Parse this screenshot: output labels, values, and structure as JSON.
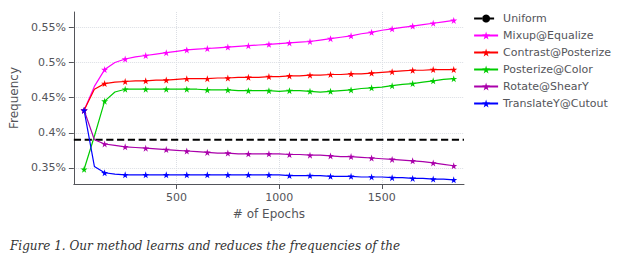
{
  "chart_data": {
    "type": "line",
    "xlabel": "# of Epochs",
    "ylabel": "Frequency",
    "annotations": [
      "Figure 1. Our method learns and reduces the frequencies of the"
    ],
    "x": [
      50,
      100,
      150,
      200,
      250,
      300,
      350,
      400,
      450,
      500,
      550,
      600,
      650,
      700,
      750,
      800,
      850,
      900,
      950,
      1000,
      1050,
      1100,
      1150,
      1200,
      1250,
      1300,
      1350,
      1400,
      1450,
      1500,
      1550,
      1600,
      1650,
      1700,
      1750,
      1800,
      1850
    ],
    "xlim": [
      0,
      1900
    ],
    "xticks": [
      500,
      1000,
      1500
    ],
    "ylim": [
      0.327,
      0.572
    ],
    "yticks": [
      {
        "value": 0.35,
        "label": "0.35%"
      },
      {
        "value": 0.4,
        "label": "0.4%"
      },
      {
        "value": 0.45,
        "label": "0.45%"
      },
      {
        "value": 0.5,
        "label": "0.5%"
      },
      {
        "value": 0.55,
        "label": "0.55%"
      }
    ],
    "grid": true,
    "legend": "right",
    "reference_lines": [
      {
        "name": "Uniform",
        "y": 0.39,
        "color": "#000000",
        "line_style": "dashed"
      }
    ],
    "series": [
      {
        "name": "Mixup@Equalize",
        "color": "#ff00ff",
        "marker": "star",
        "values": [
          0.432,
          0.466,
          0.49,
          0.5,
          0.505,
          0.508,
          0.51,
          0.512,
          0.514,
          0.516,
          0.518,
          0.519,
          0.52,
          0.521,
          0.522,
          0.523,
          0.524,
          0.525,
          0.526,
          0.527,
          0.528,
          0.529,
          0.53,
          0.532,
          0.534,
          0.536,
          0.538,
          0.541,
          0.543,
          0.546,
          0.548,
          0.55,
          0.552,
          0.554,
          0.556,
          0.558,
          0.56
        ]
      },
      {
        "name": "Contrast@Posterize",
        "color": "#ff0000",
        "marker": "star",
        "values": [
          0.432,
          0.462,
          0.47,
          0.472,
          0.473,
          0.474,
          0.474,
          0.475,
          0.475,
          0.476,
          0.477,
          0.477,
          0.477,
          0.478,
          0.478,
          0.479,
          0.479,
          0.479,
          0.48,
          0.48,
          0.481,
          0.481,
          0.482,
          0.482,
          0.483,
          0.483,
          0.484,
          0.484,
          0.485,
          0.486,
          0.487,
          0.488,
          0.489,
          0.489,
          0.49,
          0.49,
          0.49
        ]
      },
      {
        "name": "Posterize@Color",
        "color": "#00cc00",
        "marker": "star",
        "values": [
          0.348,
          0.395,
          0.445,
          0.458,
          0.462,
          0.462,
          0.462,
          0.462,
          0.462,
          0.462,
          0.462,
          0.462,
          0.461,
          0.461,
          0.461,
          0.46,
          0.46,
          0.46,
          0.46,
          0.459,
          0.46,
          0.46,
          0.459,
          0.458,
          0.459,
          0.46,
          0.461,
          0.463,
          0.464,
          0.465,
          0.467,
          0.469,
          0.47,
          0.472,
          0.474,
          0.476,
          0.477
        ]
      },
      {
        "name": "Rotate@ShearY",
        "color": "#aa00aa",
        "marker": "star",
        "values": [
          0.432,
          0.39,
          0.384,
          0.382,
          0.38,
          0.379,
          0.378,
          0.377,
          0.376,
          0.375,
          0.374,
          0.373,
          0.372,
          0.371,
          0.371,
          0.37,
          0.37,
          0.37,
          0.37,
          0.37,
          0.369,
          0.369,
          0.368,
          0.368,
          0.367,
          0.366,
          0.366,
          0.365,
          0.364,
          0.363,
          0.362,
          0.361,
          0.36,
          0.359,
          0.357,
          0.355,
          0.353
        ]
      },
      {
        "name": "TranslateY@Cutout",
        "color": "#0000ff",
        "marker": "star",
        "values": [
          0.432,
          0.352,
          0.343,
          0.341,
          0.34,
          0.34,
          0.34,
          0.34,
          0.34,
          0.34,
          0.34,
          0.34,
          0.34,
          0.34,
          0.34,
          0.34,
          0.34,
          0.34,
          0.34,
          0.34,
          0.339,
          0.339,
          0.339,
          0.339,
          0.338,
          0.338,
          0.338,
          0.337,
          0.337,
          0.337,
          0.336,
          0.336,
          0.335,
          0.335,
          0.334,
          0.334,
          0.333
        ]
      }
    ]
  }
}
